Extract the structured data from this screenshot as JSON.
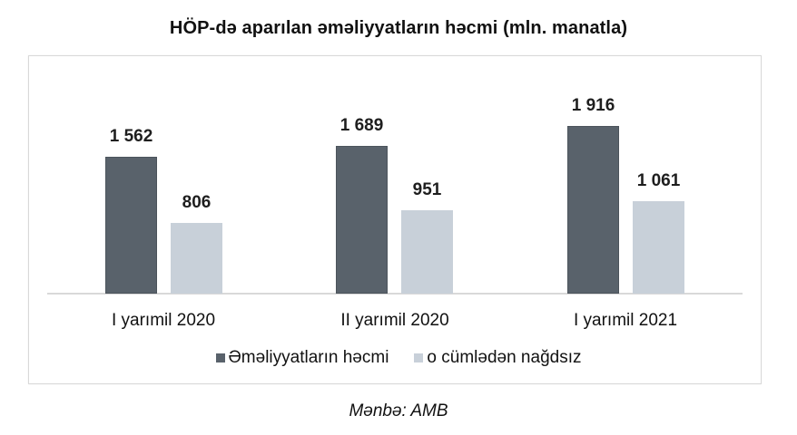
{
  "title": "HÖP-də aparılan əməliyyatların həcmi (mln. manatla)",
  "source": "Mənbə: AMB",
  "legend": [
    {
      "label": "Əməliyyatların həcmi",
      "color": "#59626b"
    },
    {
      "label": "o cümlədən nağdsız",
      "color": "#c8d0d9"
    }
  ],
  "groups": [
    {
      "category": "I yarımil 2020",
      "total_label": "1 562",
      "cashless_label": "806"
    },
    {
      "category": "II yarımil 2020",
      "total_label": "1 689",
      "cashless_label": "951"
    },
    {
      "category": "I yarımil 2021",
      "total_label": "1 916",
      "cashless_label": "1 061"
    }
  ],
  "chart_data": {
    "type": "bar",
    "title": "HÖP-də aparılan əməliyyatların həcmi (mln. manatla)",
    "categories": [
      "I yarımil 2020",
      "II yarımil 2020",
      "I yarımil 2021"
    ],
    "series": [
      {
        "name": "Əməliyyatların həcmi",
        "values": [
          1562,
          1689,
          1916
        ],
        "color": "#59626b"
      },
      {
        "name": "o cümlədən nağdsız",
        "values": [
          806,
          951,
          1061
        ],
        "color": "#c8d0d9"
      }
    ],
    "xlabel": "",
    "ylabel": "mln. manat",
    "ylim": [
      0,
      2100
    ],
    "grid": false,
    "y_axis_visible": false,
    "data_labels": true,
    "legend_position": "bottom",
    "source": "Mənbə: AMB"
  }
}
